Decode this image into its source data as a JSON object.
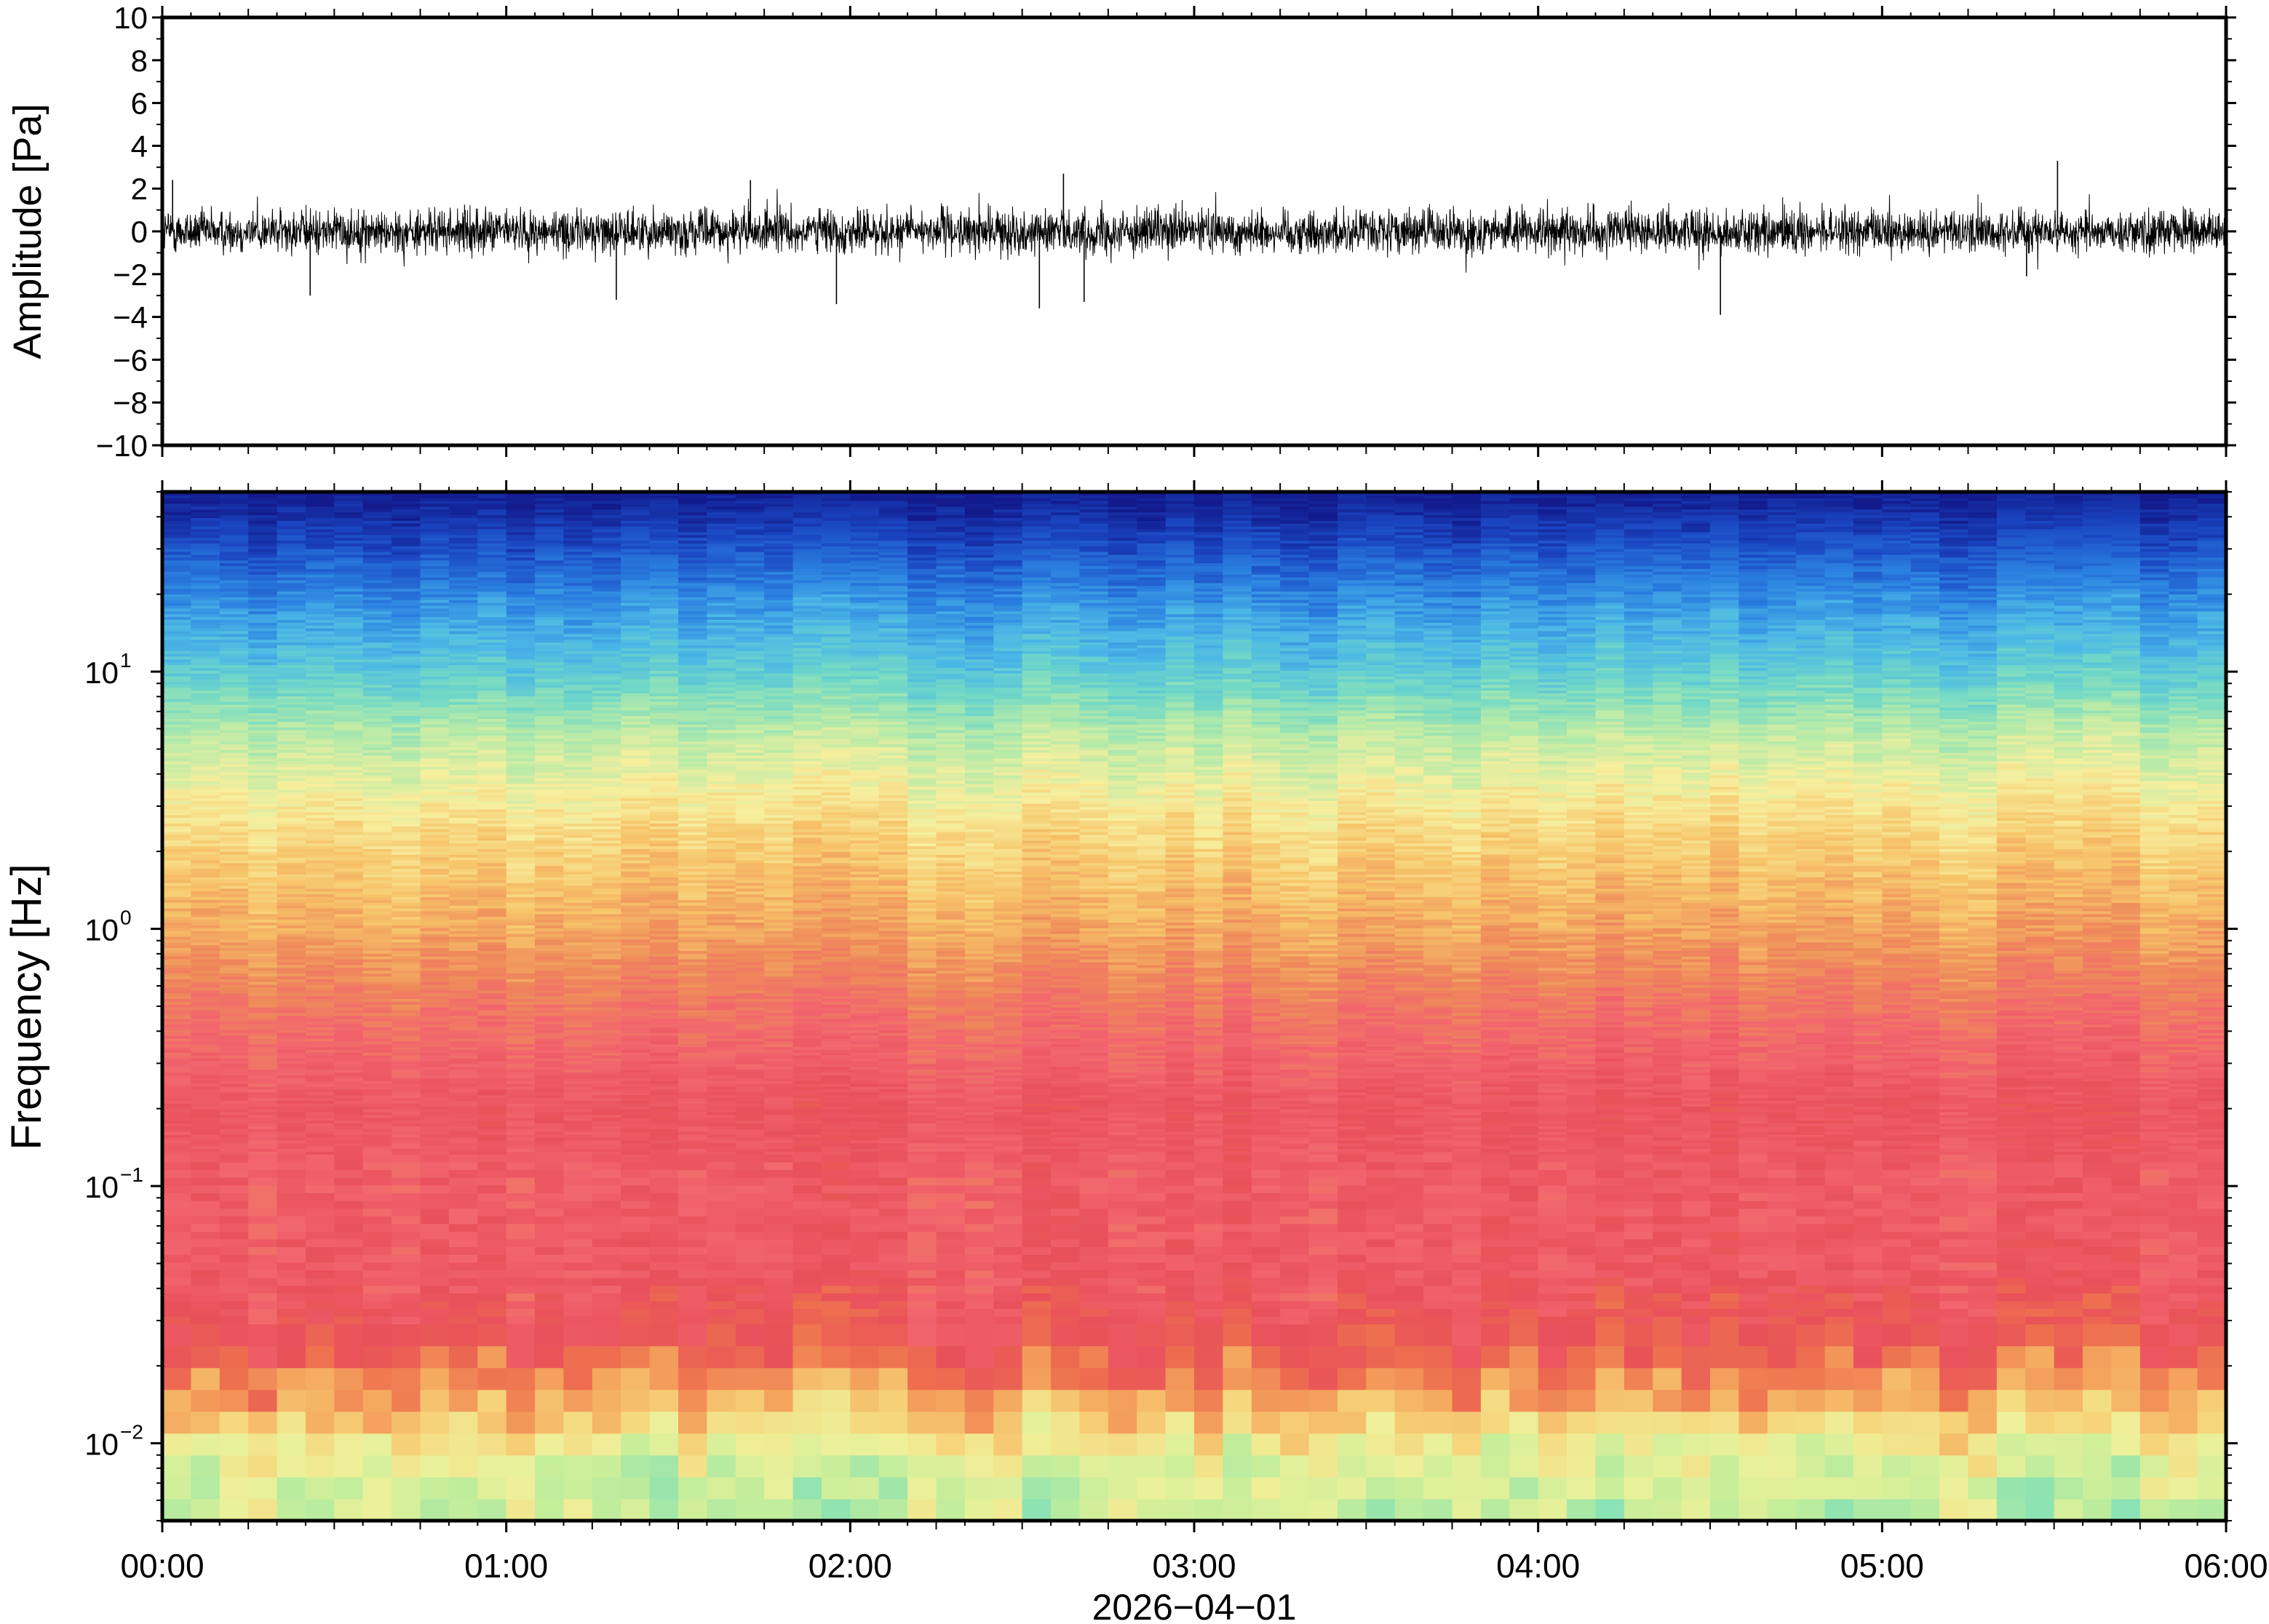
{
  "chart_data": [
    {
      "type": "line",
      "panel": "waveform",
      "ylabel": "Amplitude [Pa]",
      "ylim": [
        -10,
        10
      ],
      "yticks": [
        10,
        8,
        6,
        4,
        2,
        0,
        -2,
        -4,
        -6,
        -8,
        -10
      ],
      "ytick_labels": [
        "10",
        "8",
        "6",
        "4",
        "2",
        "0",
        "−2",
        "−4",
        "−6",
        "−8",
        "−10"
      ],
      "xlim_hours": [
        0,
        6
      ],
      "noise_band_pa": [
        -1.2,
        1.2
      ],
      "spikes": [
        {
          "t_hours": 0.03,
          "amplitude": 2.4
        },
        {
          "t_hours": 0.43,
          "amplitude": -3.0
        },
        {
          "t_hours": 1.32,
          "amplitude": -3.2
        },
        {
          "t_hours": 1.71,
          "amplitude": 2.4
        },
        {
          "t_hours": 1.96,
          "amplitude": -3.4
        },
        {
          "t_hours": 2.55,
          "amplitude": -3.6
        },
        {
          "t_hours": 2.62,
          "amplitude": 2.7
        },
        {
          "t_hours": 2.68,
          "amplitude": -3.3
        },
        {
          "t_hours": 4.53,
          "amplitude": -3.9
        },
        {
          "t_hours": 5.51,
          "amplitude": 3.3
        },
        {
          "t_hours": 5.42,
          "amplitude": -2.1
        }
      ],
      "grid": false
    },
    {
      "type": "heatmap",
      "panel": "spectrogram",
      "ylabel": "Frequency [Hz]",
      "yscale": "log",
      "ylim": [
        0.005,
        50
      ],
      "yticks": [
        {
          "value": 10,
          "base": "10",
          "exp": "1"
        },
        {
          "value": 1,
          "base": "10",
          "exp": "0"
        },
        {
          "value": 0.1,
          "base": "10",
          "exp": "−1"
        },
        {
          "value": 0.01,
          "base": "10",
          "exp": "−2"
        }
      ],
      "xlim_hours": [
        0,
        6
      ],
      "colormap": "spectral-jet",
      "colormap_stops": [
        "#6ee2e8",
        "#8fe3b0",
        "#c6ee9a",
        "#eef09a",
        "#f6d47a",
        "#f4a75e",
        "#ee6f4f",
        "#e8505a",
        "#f2656e",
        "#ef8b5a",
        "#f7c46a",
        "#f7ef9e",
        "#b8eba8",
        "#72d9c6",
        "#4cb8e6",
        "#2a7fe0",
        "#1a45c0",
        "#121a8c"
      ],
      "grid": false
    }
  ],
  "xaxis": {
    "tick_labels": [
      "00:00",
      "01:00",
      "02:00",
      "03:00",
      "04:00",
      "05:00",
      "06:00"
    ],
    "date_label": "2026−04−01"
  }
}
